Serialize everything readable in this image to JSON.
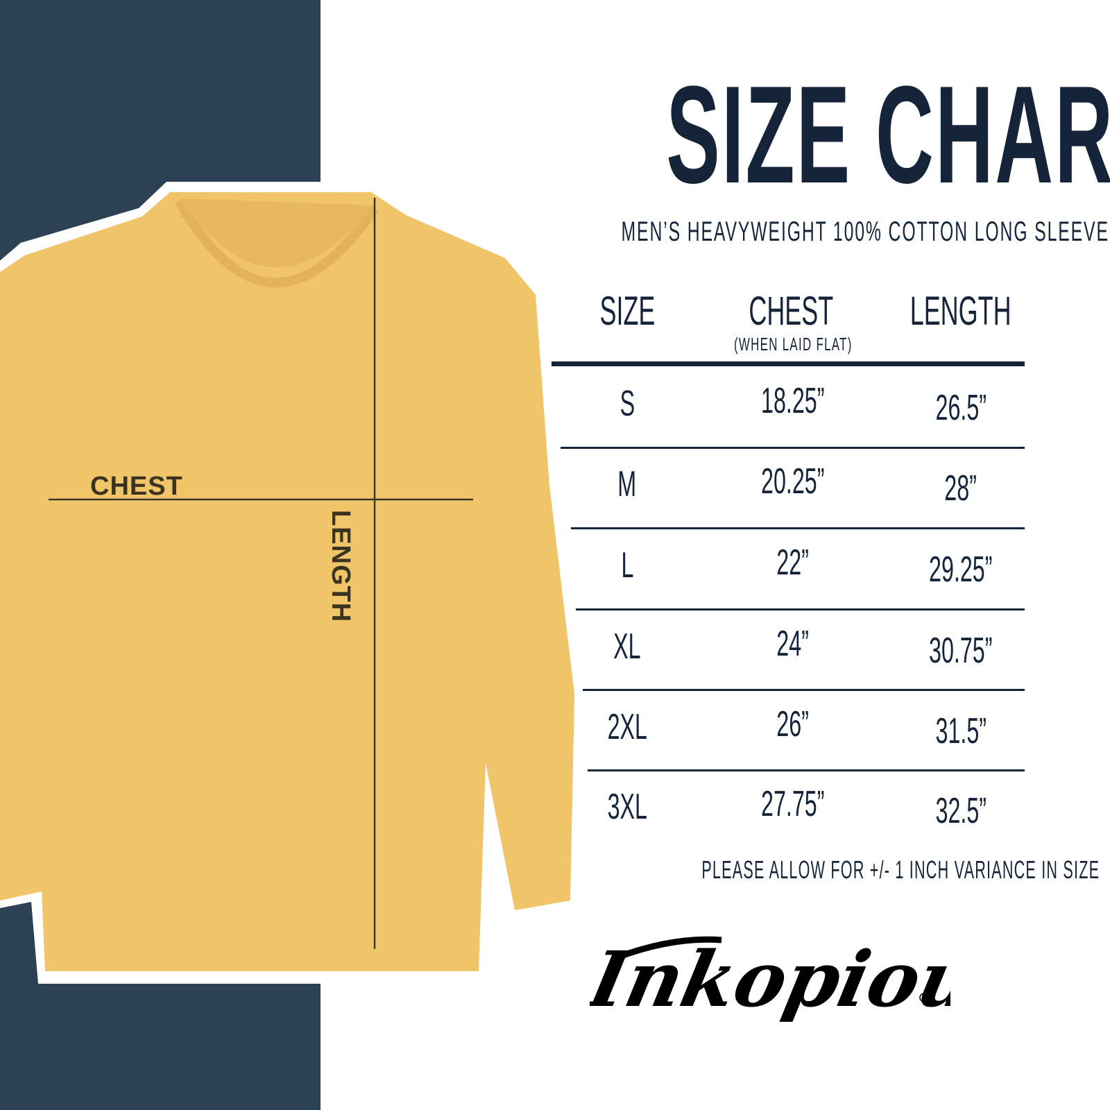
{
  "title": "SIZE CHART",
  "subtitle": "MEN’S HEAVYWEIGHT 100% COTTON LONG SLEEVE",
  "colors": {
    "navy_panel": "#2d4154",
    "shirt": "#f0c468",
    "text": "#16243a"
  },
  "shirt_labels": {
    "chest": "CHEST",
    "length": "LENGTH"
  },
  "table": {
    "headers": {
      "size": "SIZE",
      "chest": "CHEST",
      "chest_note": "(WHEN LAID FLAT)",
      "length": "LENGTH"
    },
    "rows": [
      {
        "size": "S",
        "chest": "18.25”",
        "length": "26.5”"
      },
      {
        "size": "M",
        "chest": "20.25”",
        "length": "28”"
      },
      {
        "size": "L",
        "chest": "22”",
        "length": "29.25”"
      },
      {
        "size": "XL",
        "chest": "24”",
        "length": "30.75”"
      },
      {
        "size": "2XL",
        "chest": "26”",
        "length": "31.5”"
      },
      {
        "size": "3XL",
        "chest": "27.75”",
        "length": "32.5”"
      }
    ]
  },
  "note": "PLEASE ALLOW FOR +/- 1 INCH VARIANCE IN SIZE",
  "brand": {
    "logo_text": "Inkopious"
  }
}
